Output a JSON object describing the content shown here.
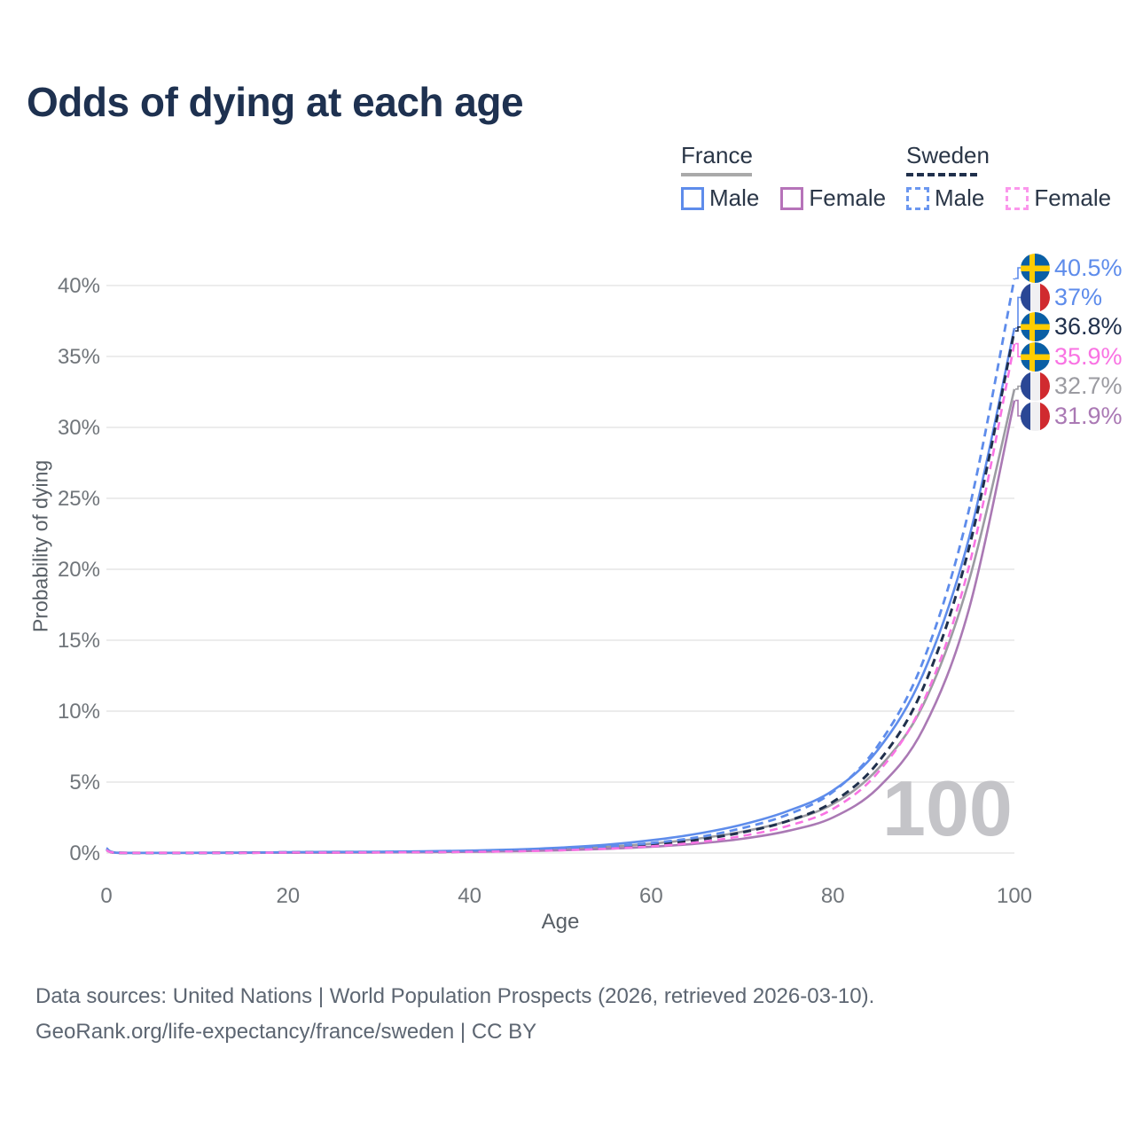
{
  "title": "Odds of dying at each age",
  "legend": {
    "groups": [
      {
        "label": "France",
        "line_style": "solid",
        "color": "#a9a9a9",
        "items": [
          {
            "label": "Male",
            "color": "#5e8ceb"
          },
          {
            "label": "Female",
            "color": "#b673b9"
          }
        ]
      },
      {
        "label": "Sweden",
        "line_style": "dashed",
        "color": "#20304c",
        "items": [
          {
            "label": "Male",
            "color": "#6b97f0"
          },
          {
            "label": "Female",
            "color": "#fb97ec"
          }
        ]
      }
    ]
  },
  "axes": {
    "x": {
      "label": "Age"
    },
    "y": {
      "label": "Probability of dying"
    }
  },
  "annotations": {
    "age_marker": "100"
  },
  "end_labels": [
    {
      "flag": "sweden",
      "value": "40.5%",
      "color": "#5e8ceb"
    },
    {
      "flag": "france",
      "value": "37%",
      "color": "#5e8ceb"
    },
    {
      "flag": "sweden",
      "value": "36.8%",
      "color": "#20304c"
    },
    {
      "flag": "sweden",
      "value": "35.9%",
      "color": "#f973e3"
    },
    {
      "flag": "france",
      "value": "32.7%",
      "color": "#9b9ba1"
    },
    {
      "flag": "france",
      "value": "31.9%",
      "color": "#aa79b4"
    }
  ],
  "footer": {
    "line1": "Data sources: United Nations | World Population Prospects (2026, retrieved 2026-03-10).",
    "line2": "GeoRank.org/life-expectancy/france/sweden | CC BY"
  },
  "chart_data": {
    "type": "line",
    "title": "Odds of dying at each age",
    "xlabel": "Age",
    "ylabel": "Probability of dying",
    "xlim": [
      0,
      100
    ],
    "ylim": [
      0,
      40.5
    ],
    "xticks": [
      0,
      20,
      40,
      60,
      80,
      100
    ],
    "yticks": [
      "0%",
      "5%",
      "10%",
      "15%",
      "20%",
      "25%",
      "30%",
      "35%",
      "40%"
    ],
    "grid": "horizontal",
    "legend_position": "top-right",
    "x": [
      0,
      1,
      5,
      10,
      15,
      20,
      25,
      30,
      35,
      40,
      45,
      50,
      55,
      60,
      65,
      70,
      75,
      80,
      85,
      90,
      95,
      100
    ],
    "series": [
      {
        "name": "Sweden Male",
        "country": "Sweden",
        "sex": "Male",
        "color": "#5e8ceb",
        "dash": true,
        "width": 2.8,
        "end_label": "40.5%",
        "values": [
          0.25,
          0.02,
          0.01,
          0.01,
          0.02,
          0.05,
          0.06,
          0.07,
          0.09,
          0.12,
          0.18,
          0.28,
          0.45,
          0.7,
          1.1,
          1.75,
          2.7,
          4.3,
          7.6,
          13.6,
          24.2,
          40.5
        ]
      },
      {
        "name": "France Male",
        "country": "France",
        "sex": "Male",
        "color": "#5e8ceb",
        "dash": false,
        "width": 2.6,
        "end_label": "37%",
        "values": [
          0.35,
          0.03,
          0.01,
          0.02,
          0.03,
          0.06,
          0.08,
          0.09,
          0.12,
          0.17,
          0.25,
          0.38,
          0.58,
          0.9,
          1.35,
          2.0,
          2.95,
          4.4,
          7.3,
          12.7,
          22.2,
          37.0
        ]
      },
      {
        "name": "Sweden Total",
        "country": "Sweden",
        "sex": "Both",
        "color": "#20304c",
        "dash": true,
        "width": 3.0,
        "end_label": "36.8%",
        "values": [
          0.22,
          0.02,
          0.01,
          0.01,
          0.02,
          0.04,
          0.05,
          0.06,
          0.07,
          0.1,
          0.15,
          0.24,
          0.38,
          0.58,
          0.92,
          1.45,
          2.25,
          3.6,
          6.4,
          11.7,
          21.5,
          36.8
        ]
      },
      {
        "name": "Sweden Female",
        "country": "Sweden",
        "sex": "Female",
        "color": "#f973e3",
        "dash": true,
        "width": 2.6,
        "end_label": "35.9%",
        "values": [
          0.2,
          0.02,
          0.01,
          0.01,
          0.01,
          0.03,
          0.03,
          0.04,
          0.06,
          0.08,
          0.12,
          0.19,
          0.3,
          0.47,
          0.75,
          1.2,
          1.9,
          3.1,
          5.7,
          10.7,
          20.2,
          35.9
        ]
      },
      {
        "name": "France Total",
        "country": "France",
        "sex": "Both",
        "color": "#9c9ca2",
        "dash": false,
        "width": 2.6,
        "end_label": "32.7%",
        "values": [
          0.3,
          0.03,
          0.01,
          0.01,
          0.02,
          0.04,
          0.06,
          0.07,
          0.09,
          0.13,
          0.19,
          0.28,
          0.43,
          0.66,
          1.0,
          1.5,
          2.25,
          3.45,
          5.95,
          10.5,
          19.2,
          32.7
        ]
      },
      {
        "name": "France Female",
        "country": "France",
        "sex": "Female",
        "color": "#aa79b4",
        "dash": false,
        "width": 2.6,
        "end_label": "31.9%",
        "values": [
          0.28,
          0.02,
          0.01,
          0.01,
          0.01,
          0.03,
          0.03,
          0.04,
          0.06,
          0.09,
          0.13,
          0.19,
          0.29,
          0.44,
          0.66,
          1.0,
          1.55,
          2.5,
          4.6,
          8.8,
          17.2,
          31.9
        ]
      }
    ]
  }
}
